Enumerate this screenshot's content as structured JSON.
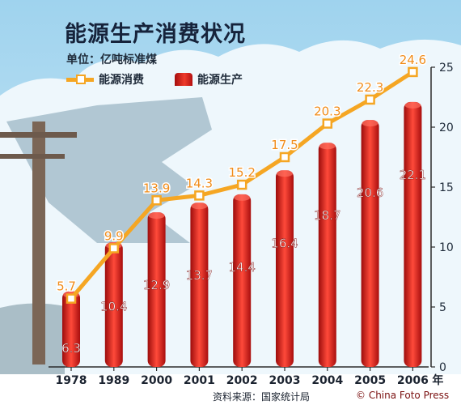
{
  "title": "能源生产消费状况",
  "unit": "单位：亿吨标准煤",
  "legend": {
    "consumption": "能源消费",
    "production": "能源生产"
  },
  "source": "资料来源：国家统计局",
  "credit": "© China Foto Press",
  "colors": {
    "consumption_line": "#f5a623",
    "production_bar": "#d81e1e",
    "consumption_label": "#f08c1a",
    "production_label": "#ffffff"
  },
  "chart_data": {
    "type": "bar",
    "categories": [
      "1978",
      "1989",
      "2000",
      "2001",
      "2002",
      "2003",
      "2004",
      "2005",
      "2006"
    ],
    "x_unit": "年",
    "ylim": [
      0,
      25
    ],
    "y_ticks": [
      0,
      5,
      10,
      15,
      20,
      25
    ],
    "y_axis_side": "right",
    "legend_position": "top-left",
    "grid": false,
    "series": [
      {
        "name": "能源生产",
        "type": "bar",
        "values": [
          6.3,
          10.4,
          12.9,
          13.7,
          14.4,
          16.4,
          18.7,
          20.6,
          22.1
        ]
      },
      {
        "name": "能源消费",
        "type": "line",
        "values": [
          5.7,
          9.9,
          13.9,
          14.3,
          15.2,
          17.5,
          20.3,
          22.3,
          24.6
        ]
      }
    ]
  }
}
